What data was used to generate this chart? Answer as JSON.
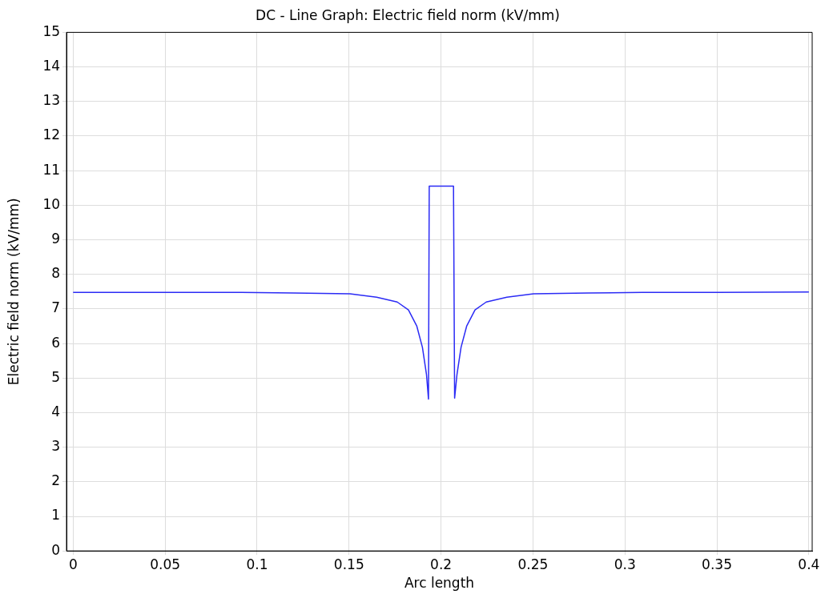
{
  "chart_data": {
    "type": "line",
    "title": "DC - Line Graph: Electric field norm (kV/mm)",
    "xlabel": "Arc length",
    "ylabel": "Electric field norm (kV/mm)",
    "xlim": [
      -0.0036,
      0.4018
    ],
    "xticks": [
      0,
      0.05,
      0.1,
      0.15,
      0.2,
      0.25,
      0.3,
      0.35,
      0.4
    ],
    "ylim": [
      0,
      15
    ],
    "yticks": [
      0,
      1,
      2,
      3,
      4,
      5,
      6,
      7,
      8,
      9,
      10,
      11,
      12,
      13,
      14,
      15
    ],
    "grid": true,
    "legend": false,
    "marker": "none",
    "line_style": "solid",
    "series": [
      {
        "color": "#2b2bf5",
        "x": [
          0,
          0.05,
          0.0914,
          0.12,
          0.1505,
          0.165,
          0.1762,
          0.1823,
          0.1868,
          0.1899,
          0.1921,
          0.1932,
          0.1936,
          0.2068,
          0.2074,
          0.2087,
          0.2109,
          0.214,
          0.2185,
          0.2246,
          0.2358,
          0.2503,
          0.28,
          0.3094,
          0.35,
          0.4
        ],
        "values": [
          7.48,
          7.48,
          7.48,
          7.46,
          7.44,
          7.34,
          7.2,
          6.97,
          6.51,
          5.89,
          5.11,
          4.39,
          10.55,
          10.55,
          4.42,
          5.11,
          5.89,
          6.51,
          6.97,
          7.2,
          7.34,
          7.44,
          7.46,
          7.48,
          7.48,
          7.49
        ]
      }
    ]
  }
}
